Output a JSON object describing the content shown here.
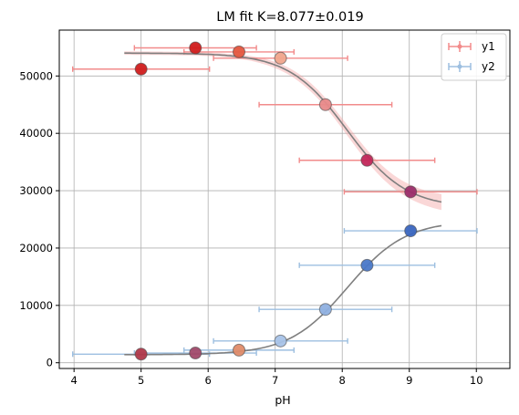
{
  "chart_data": {
    "type": "scatter",
    "title": "LM fit K=8.077±0.019",
    "xlabel": "pH",
    "ylabel": "",
    "xlim": [
      3.78,
      10.5
    ],
    "ylim": [
      -1000,
      58000
    ],
    "xticks": [
      4,
      5,
      6,
      7,
      8,
      9,
      10
    ],
    "yticks": [
      0,
      10000,
      20000,
      30000,
      40000,
      50000
    ],
    "x_tick_labels": [
      "4",
      "5",
      "6",
      "7",
      "8",
      "9",
      "10"
    ],
    "y_tick_labels": [
      "0",
      "10000",
      "20000",
      "30000",
      "40000",
      "50000"
    ],
    "grid": true,
    "legend_placement": "top-right",
    "colors": {
      "y1": "#d62728",
      "y2": "#4a7bc8",
      "fit": "#7f7f7f",
      "y1_errorbar": "#f28b8b",
      "y2_errorbar": "#9dbfe0",
      "band": "#f4a6a6",
      "grid": "#b0b0b0"
    },
    "series": [
      {
        "name": "y1",
        "x": [
          5.0,
          5.81,
          6.46,
          7.08,
          7.75,
          8.37,
          9.02
        ],
        "y": [
          51200,
          54900,
          54200,
          53100,
          45000,
          35300,
          29800
        ],
        "xerr": [
          1.02,
          0.91,
          0.82,
          1.0,
          0.99,
          1.01,
          0.99
        ],
        "point_colors": [
          "#d01c1c",
          "#d01c1c",
          "#e4573f",
          "#f0a58c",
          "#e88a8a",
          "#c2275a",
          "#9b2d6a"
        ]
      },
      {
        "name": "y2",
        "x": [
          5.0,
          5.81,
          6.46,
          7.08,
          7.75,
          8.37,
          9.02
        ],
        "y": [
          1500,
          1700,
          2200,
          3800,
          9300,
          17000,
          23000
        ],
        "xerr": [
          1.02,
          0.91,
          0.82,
          1.0,
          0.99,
          1.01,
          0.99
        ],
        "point_colors": [
          "#b0384a",
          "#a24a6a",
          "#e08c6a",
          "#a8c3e8",
          "#8fb0e0",
          "#4a78c8",
          "#3a66c0"
        ]
      }
    ],
    "fit": {
      "K": 8.077,
      "x_range": [
        4.75,
        9.48
      ],
      "y1_plateaus": [
        54000,
        27000
      ],
      "y2_plateaus": [
        1400,
        24800
      ]
    }
  }
}
